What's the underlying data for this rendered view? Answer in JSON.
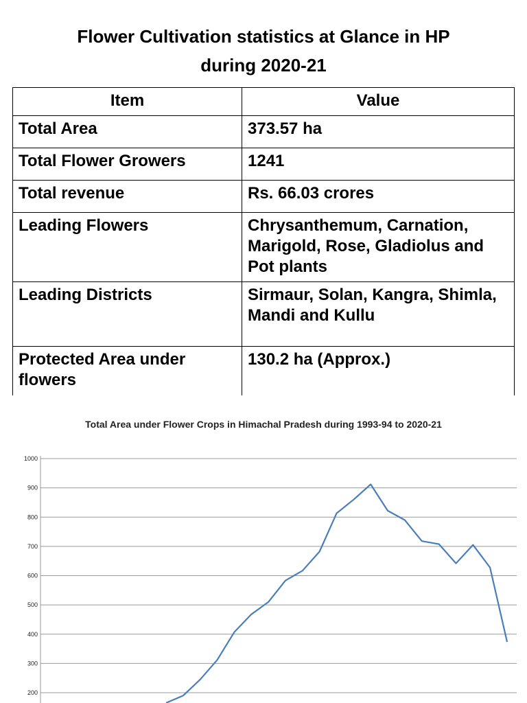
{
  "title_line1": "Flower Cultivation statistics at Glance in HP",
  "title_line2": "during 2020-21",
  "table": {
    "headers": [
      "Item",
      "Value"
    ],
    "rows": [
      [
        "Total Area",
        "373.57 ha"
      ],
      [
        "Total Flower Growers",
        "1241"
      ],
      [
        "Total revenue",
        "Rs. 66.03 crores"
      ],
      [
        "Leading Flowers",
        "Chrysanthemum, Carnation, Marigold, Rose, Gladiolus and Pot plants"
      ],
      [
        "Leading Districts",
        "Sirmaur, Solan, Kangra, Shimla, Mandi and Kullu"
      ],
      [
        "Protected Area under flowers",
        "130.2 ha (Approx.)"
      ]
    ]
  },
  "chart_data": {
    "type": "line",
    "title": "Total Area under Flower Crops in Himachal Pradesh during 1993-94 to 2020-21",
    "xlabel": "",
    "ylabel": "",
    "y_ticks": [
      "200",
      "300",
      "400",
      "500",
      "600",
      "700",
      "800",
      "900",
      "1000"
    ],
    "ylim": [
      200,
      1000
    ],
    "grid": true,
    "color": "#4a7ebb",
    "series": [
      {
        "values": [
          null,
          null,
          null,
          null,
          null,
          null,
          null,
          165,
          190,
          245,
          312,
          407,
          468,
          510,
          583,
          617,
          682,
          813,
          860,
          912,
          822,
          790,
          718,
          708,
          642,
          705,
          628,
          373.57
        ]
      }
    ]
  }
}
